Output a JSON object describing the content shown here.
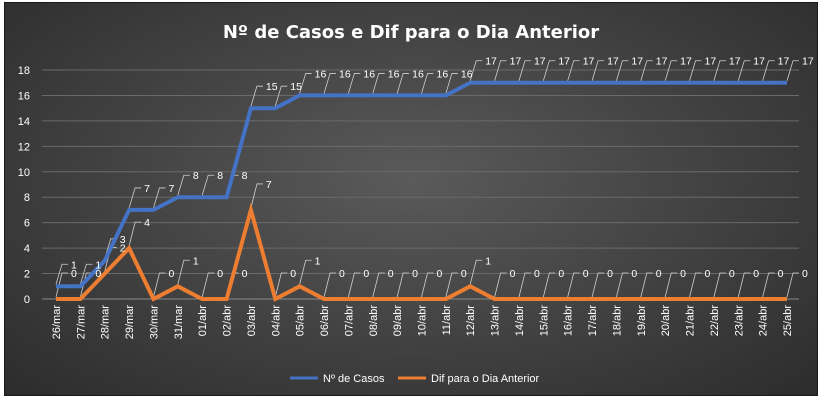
{
  "chart_data": {
    "type": "line",
    "title": "Nº de Casos e Dif para o Dia Anterior",
    "xlabel": "",
    "ylabel": "",
    "ylim": [
      0,
      18
    ],
    "yticks": [
      0,
      2,
      4,
      6,
      8,
      10,
      12,
      14,
      16,
      18
    ],
    "grid": true,
    "legend_position": "bottom",
    "categories": [
      "26/mar",
      "27/mar",
      "28/mar",
      "29/mar",
      "30/mar",
      "31/mar",
      "01/abr",
      "02/abr",
      "03/abr",
      "04/abr",
      "05/abr",
      "06/abr",
      "07/abr",
      "08/abr",
      "09/abr",
      "10/abr",
      "11/abr",
      "12/abr",
      "13/abr",
      "14/abr",
      "15/abr",
      "16/abr",
      "17/abr",
      "18/abr",
      "19/abr",
      "20/abr",
      "21/abr",
      "22/abr",
      "23/abr",
      "24/abr",
      "25/abr"
    ],
    "series": [
      {
        "name": "Nº de Casos",
        "color": "#4472C4",
        "values": [
          1,
          1,
          3,
          7,
          7,
          8,
          8,
          8,
          15,
          15,
          16,
          16,
          16,
          16,
          16,
          16,
          16,
          17,
          17,
          17,
          17,
          17,
          17,
          17,
          17,
          17,
          17,
          17,
          17,
          17,
          17
        ]
      },
      {
        "name": "Dif para o Dia Anterior",
        "color": "#ED7D31",
        "values": [
          0,
          0,
          2,
          4,
          0,
          1,
          0,
          0,
          7,
          0,
          1,
          0,
          0,
          0,
          0,
          0,
          0,
          1,
          0,
          0,
          0,
          0,
          0,
          0,
          0,
          0,
          0,
          0,
          0,
          0,
          0
        ]
      }
    ]
  }
}
